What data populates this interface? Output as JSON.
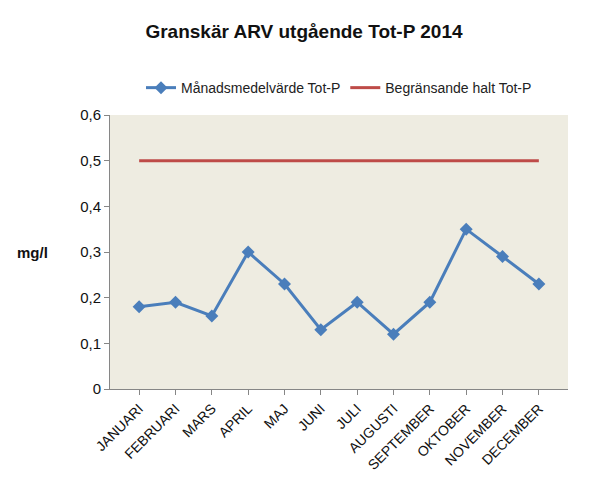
{
  "chart_data": {
    "type": "line",
    "title": "Granskär ARV utgående Tot-P 2014",
    "y_label": "mg/l",
    "categories": [
      "JANUARI",
      "FEBRUARI",
      "MARS",
      "APRIL",
      "MAJ",
      "JUNI",
      "JULI",
      "AUGUSTI",
      "SEPTEMBER",
      "OKTOBER",
      "NOVEMBER",
      "DECEMBER"
    ],
    "series": [
      {
        "name": "Månadsmedelvärde Tot-P",
        "color": "#4a7ebb",
        "marker": "diamond",
        "line_style": "solid",
        "values": [
          0.18,
          0.19,
          0.16,
          0.3,
          0.23,
          0.13,
          0.19,
          0.12,
          0.19,
          0.35,
          0.29,
          0.23
        ]
      },
      {
        "name": "Begränsande halt Tot-P",
        "color": "#be4b48",
        "marker": "none",
        "line_style": "solid",
        "values": [
          0.5,
          0.5,
          0.5,
          0.5,
          0.5,
          0.5,
          0.5,
          0.5,
          0.5,
          0.5,
          0.5,
          0.5
        ]
      }
    ],
    "ylim": [
      0,
      0.6
    ],
    "yticks": [
      0,
      {
        "value": 0.1,
        "label": "0,1"
      },
      {
        "value": 0.2,
        "label": "0,2"
      },
      {
        "value": 0.3,
        "label": "0,3"
      },
      {
        "value": 0.4,
        "label": "0,4"
      },
      {
        "value": 0.5,
        "label": "0,5"
      },
      {
        "value": 0.6,
        "label": "0,6"
      }
    ],
    "grid": false,
    "legend": "top"
  }
}
